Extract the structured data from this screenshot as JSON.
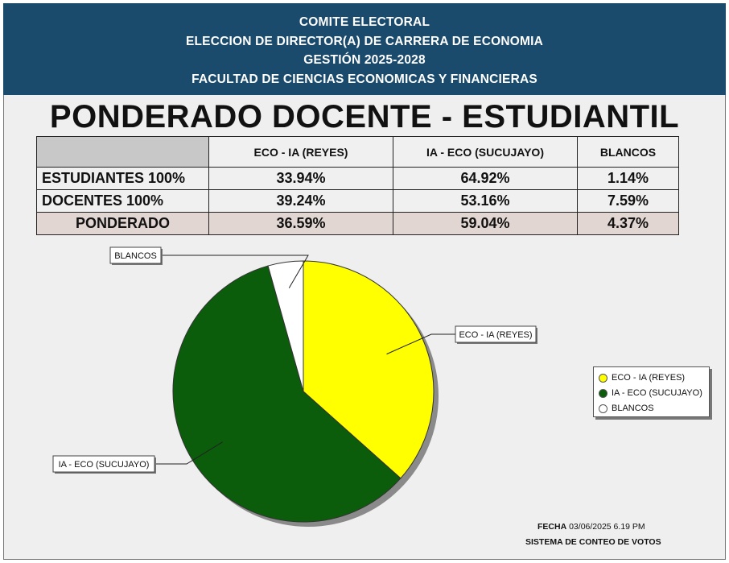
{
  "header": {
    "line1": "COMITE ELECTORAL",
    "line2": "ELECCION DE DIRECTOR(A) DE CARRERA DE ECONOMIA",
    "line3": "GESTIÓN 2025-2028",
    "line4": "FACULTAD DE CIENCIAS ECONOMICAS Y FINANCIERAS"
  },
  "title": "PONDERADO DOCENTE - ESTUDIANTIL",
  "table": {
    "columns": [
      "",
      "ECO - IA (REYES)",
      "IA - ECO (SUCUJAYO)",
      "BLANCOS"
    ],
    "rows": [
      {
        "label": "ESTUDIANTES 100%",
        "values": [
          "33.94%",
          "64.92%",
          "1.14%"
        ]
      },
      {
        "label": "DOCENTES 100%",
        "values": [
          "39.24%",
          "53.16%",
          "7.59%"
        ]
      },
      {
        "label": "PONDERADO",
        "values": [
          "36.59%",
          "59.04%",
          "4.37%"
        ]
      }
    ]
  },
  "chart_data": {
    "type": "pie",
    "categories": [
      "ECO - IA (REYES)",
      "IA - ECO (SUCUJAYO)",
      "BLANCOS"
    ],
    "values": [
      36.59,
      59.04,
      4.37
    ],
    "colors": [
      "#ffff00",
      "#0b5c0b",
      "#ffffff"
    ],
    "legend": "right"
  },
  "footer": {
    "date_label": "FECHA",
    "date_value": "03/06/2025 6.19 PM",
    "system": "SISTEMA DE CONTEO DE VOTOS"
  }
}
